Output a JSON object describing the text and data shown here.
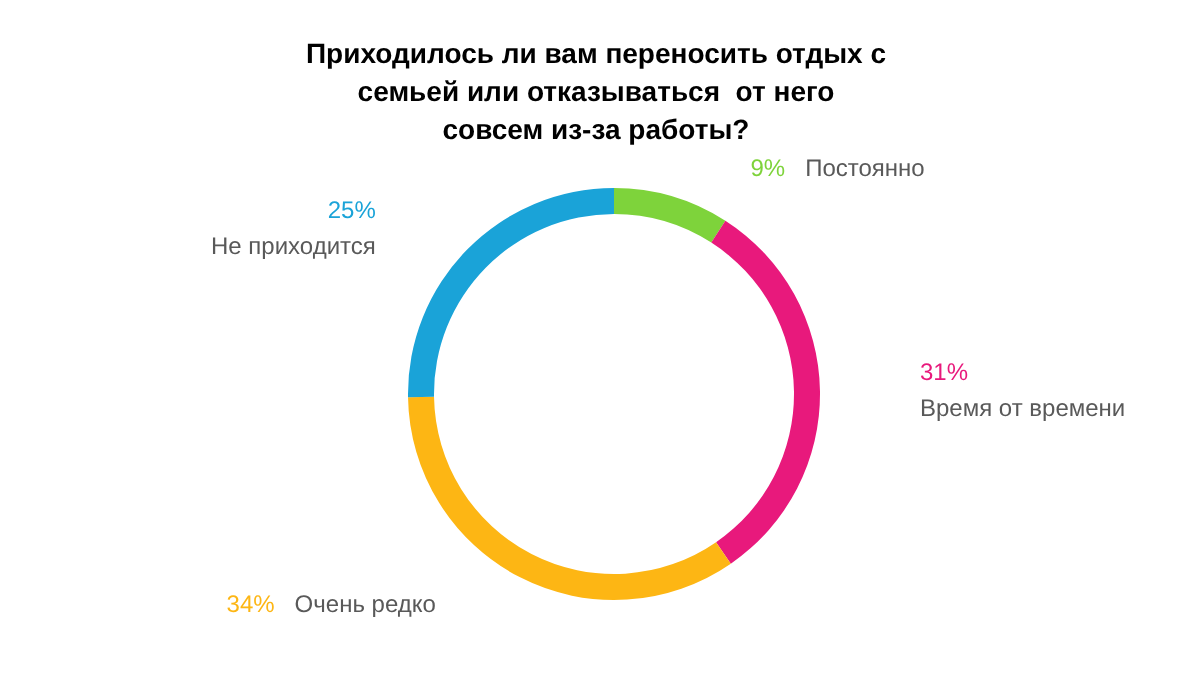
{
  "chart_data": {
    "type": "donut",
    "title": "Приходилось ли вам переносить отдых с семьей или отказываться  от него совсем из-за работы?",
    "categories": [
      "Постоянно",
      "Время от времени",
      "Очень редко",
      "Не приходится"
    ],
    "values": [
      9,
      31,
      34,
      25
    ],
    "value_labels": [
      "9%",
      "31%",
      "34%",
      "25%"
    ],
    "colors": [
      "#7ed33b",
      "#e8197c",
      "#fdb614",
      "#1aa3d8"
    ],
    "legend": false
  }
}
